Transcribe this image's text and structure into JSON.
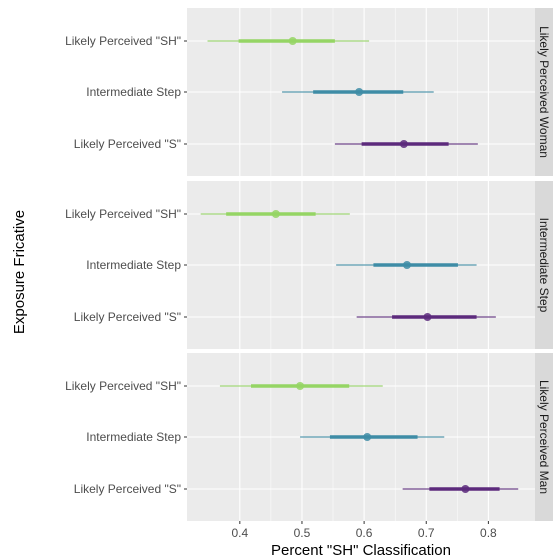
{
  "chart_data": {
    "type": "pointrange",
    "xlabel": "Percent \"SH\" Classification",
    "ylabel": "Exposure Fricative",
    "x_ticks": [
      0.4,
      0.5,
      0.6,
      0.7,
      0.8
    ],
    "xlim": [
      0.315,
      0.875
    ],
    "categories": [
      "Likely Perceived \"SH\"",
      "Intermediate Step",
      "Likely Perceived \"S\""
    ],
    "category_colors": {
      "Likely Perceived \"SH\"": "#95d564",
      "Intermediate Step": "#3e8ca6",
      "Likely Perceived \"S\"": "#5c2a7c"
    },
    "panels": [
      {
        "label": "Likely Perceived Woman",
        "points": [
          {
            "category": "Likely Perceived \"SH\"",
            "median": 0.485,
            "inner": [
              0.398,
              0.553
            ],
            "outer": [
              0.348,
              0.608
            ]
          },
          {
            "category": "Intermediate Step",
            "median": 0.592,
            "inner": [
              0.518,
              0.663
            ],
            "outer": [
              0.468,
              0.712
            ]
          },
          {
            "category": "Likely Perceived \"S\"",
            "median": 0.664,
            "inner": [
              0.596,
              0.736
            ],
            "outer": [
              0.553,
              0.783
            ]
          }
        ]
      },
      {
        "label": "Intermediate Step",
        "points": [
          {
            "category": "Likely Perceived \"SH\"",
            "median": 0.458,
            "inner": [
              0.378,
              0.522
            ],
            "outer": [
              0.337,
              0.577
            ]
          },
          {
            "category": "Intermediate Step",
            "median": 0.669,
            "inner": [
              0.615,
              0.751
            ],
            "outer": [
              0.555,
              0.781
            ]
          },
          {
            "category": "Likely Perceived \"S\"",
            "median": 0.702,
            "inner": [
              0.645,
              0.781
            ],
            "outer": [
              0.588,
              0.812
            ]
          }
        ]
      },
      {
        "label": "Likely Perceived Man",
        "points": [
          {
            "category": "Likely Perceived \"SH\"",
            "median": 0.497,
            "inner": [
              0.418,
              0.576
            ],
            "outer": [
              0.368,
              0.63
            ]
          },
          {
            "category": "Intermediate Step",
            "median": 0.605,
            "inner": [
              0.545,
              0.686
            ],
            "outer": [
              0.497,
              0.729
            ]
          },
          {
            "category": "Likely Perceived \"S\"",
            "median": 0.763,
            "inner": [
              0.705,
              0.818
            ],
            "outer": [
              0.662,
              0.848
            ]
          }
        ]
      }
    ],
    "panel_background": "#ebebeb",
    "strip_background": "#d9d9d9",
    "gridline_color": "#ffffff",
    "grid": true,
    "legend": "none"
  }
}
